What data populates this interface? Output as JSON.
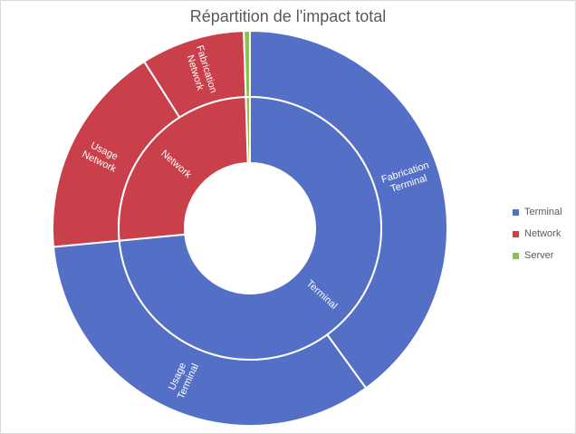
{
  "chart_data": {
    "type": "sunburst",
    "title": "Répartition de l'impact total",
    "colors": {
      "Terminal": "#5470c6",
      "Network": "#c9404b",
      "Server": "#8cc152"
    },
    "inner": [
      {
        "name": "Terminal",
        "value": 73.5,
        "label": [
          "Terminal"
        ]
      },
      {
        "name": "Network",
        "value": 26.0,
        "label": [
          "Network"
        ]
      },
      {
        "name": "Server",
        "value": 0.5,
        "label": []
      }
    ],
    "outer": [
      {
        "group": "Terminal",
        "value": 40.0,
        "label": [
          "Fabrication",
          "Terminal"
        ]
      },
      {
        "group": "Terminal",
        "value": 33.5,
        "label": [
          "Usage",
          "Terminal"
        ]
      },
      {
        "group": "Network",
        "value": 17.5,
        "label": [
          "Usage",
          "Network"
        ]
      },
      {
        "group": "Network",
        "value": 8.5,
        "label": [
          "Fabrication",
          "Network"
        ]
      },
      {
        "group": "Server",
        "value": 0.5,
        "label": []
      }
    ],
    "legend": [
      "Terminal",
      "Network",
      "Server"
    ],
    "legend_position": "right"
  }
}
